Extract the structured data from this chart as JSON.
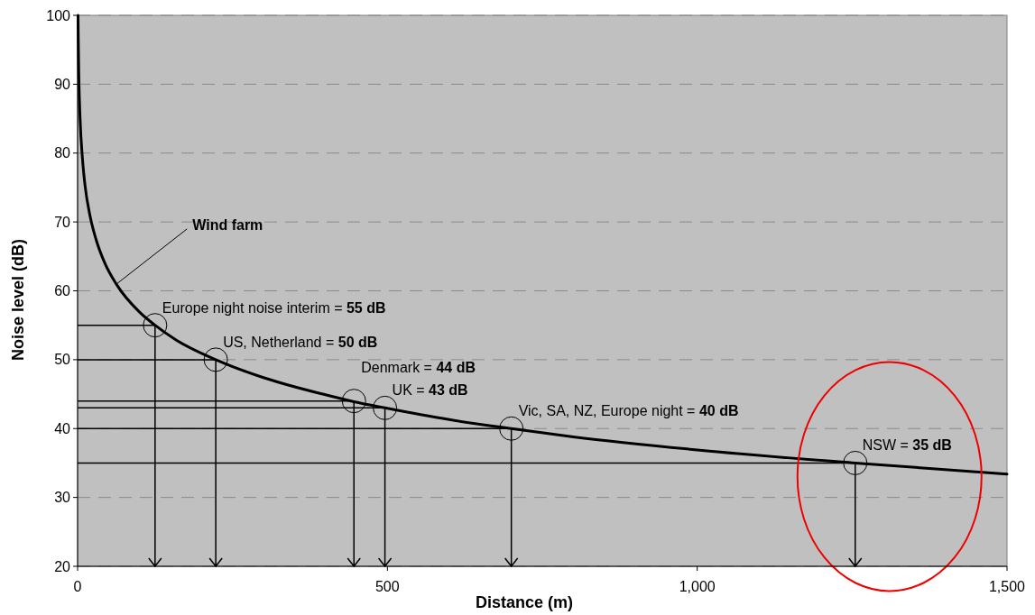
{
  "chart_data": {
    "type": "line",
    "xlabel": "Distance (m)",
    "ylabel": "Noise level (dB)",
    "xlim": [
      0,
      1500
    ],
    "xticks": [
      0,
      {
        "value": 500,
        "label": "500"
      },
      {
        "value": 1000,
        "label": "1,000"
      },
      {
        "value": 1500,
        "label": "1,500"
      }
    ],
    "ylim": [
      20,
      100
    ],
    "yticks": [
      20,
      30,
      40,
      50,
      60,
      70,
      80,
      90,
      100
    ],
    "grid": "y",
    "series": [
      {
        "color": "#000000",
        "line_style": "solid",
        "x": [
          0.7,
          1,
          2,
          4,
          8,
          12,
          20,
          30,
          45,
          63,
          100,
          125,
          160,
          223,
          300,
          400,
          446,
          496,
          600,
          700,
          800,
          1000,
          1255,
          1500
        ],
        "values": [
          100,
          97,
          91,
          85,
          79,
          75.3,
          70.9,
          67.4,
          63.8,
          60.9,
          56.9,
          55,
          52.8,
          50,
          47.4,
          44.9,
          43.9,
          43,
          41.3,
          40,
          38.8,
          36.9,
          35,
          33.4
        ]
      },
      {
        "type": "scatter",
        "color": "#000000",
        "marker": "circle",
        "x": [
          125,
          223,
          446,
          496,
          700,
          1255
        ],
        "values": [
          55,
          50,
          44,
          43,
          40,
          35
        ]
      }
    ],
    "ref_lines": [
      {
        "axis": "y",
        "value": 55,
        "color": "#000000"
      },
      {
        "axis": "y",
        "value": 50,
        "color": "#000000"
      },
      {
        "axis": "y",
        "value": 44,
        "color": "#000000"
      },
      {
        "axis": "y",
        "value": 43,
        "color": "#000000"
      },
      {
        "axis": "y",
        "value": 40,
        "color": "#000000"
      },
      {
        "axis": "y",
        "value": 35,
        "color": "#000000"
      }
    ],
    "annotations": [
      {
        "text": "Wind farm",
        "x": 63,
        "y": 61
      },
      {
        "text": "Europe night noise interim = 55 dB",
        "x": 125,
        "y": 55
      },
      {
        "text": "US, Netherland = 50 dB",
        "x": 223,
        "y": 50
      },
      {
        "text": "Denmark = 44 dB",
        "x": 446,
        "y": 44
      },
      {
        "text": "UK = 43 dB",
        "x": 496,
        "y": 43
      },
      {
        "text": "Vic, SA, NZ, Europe night = 40 dB",
        "x": 700,
        "y": 40
      },
      {
        "text": "NSW = 35 dB",
        "x": 1255,
        "y": 35
      }
    ]
  }
}
